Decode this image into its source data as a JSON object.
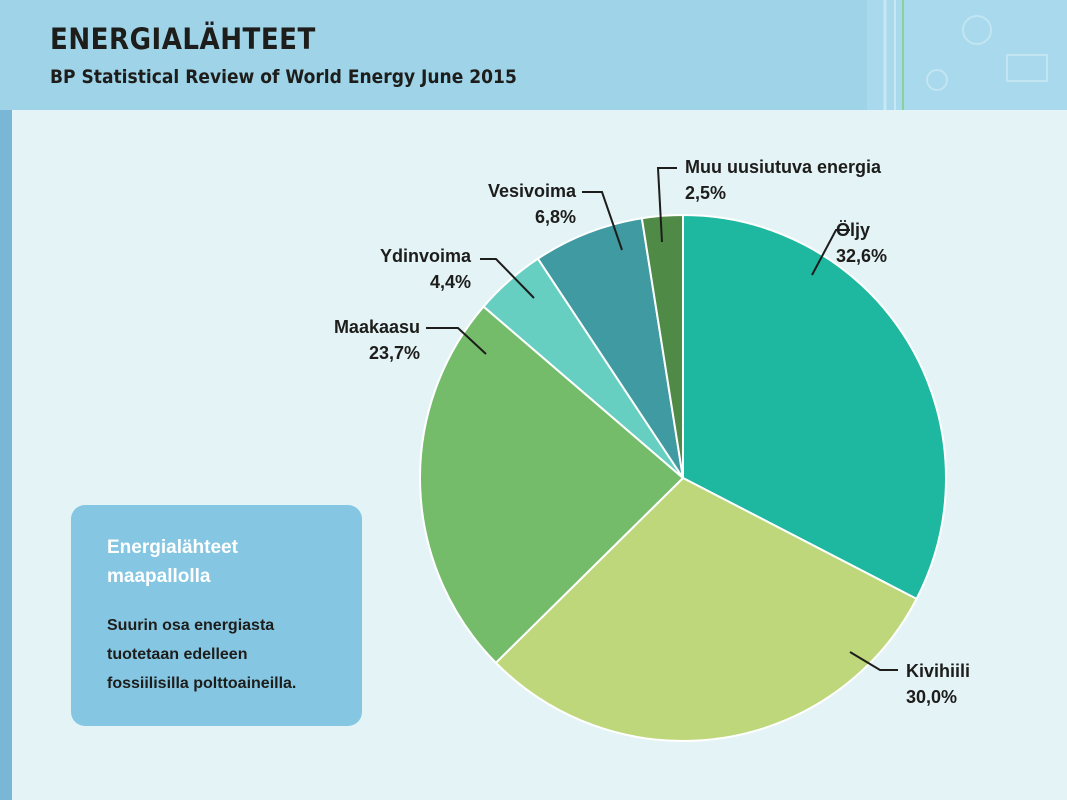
{
  "header": {
    "title": "ENERGIALÄHTEET",
    "subtitle": "BP Statistical Review of World Energy June 2015"
  },
  "info_box": {
    "title_line1": "Energialähteet",
    "title_line2": "maapallolla",
    "text_line1": "Suurin osa energiasta",
    "text_line2": "tuotetaan edelleen",
    "text_line3": "fossiilisilla polttoaineilla."
  },
  "colors": {
    "header": "#9fd3e8",
    "background": "#e4f3f6",
    "info_box": "#85c6e2"
  },
  "chart_data": {
    "type": "pie",
    "title": "",
    "slices": [
      {
        "label": "Öljy",
        "value": 32.6,
        "value_label": "32,6%",
        "color": "#1db89f"
      },
      {
        "label": "Kivihiili",
        "value": 30.0,
        "value_label": "30,0%",
        "color": "#bdd77a"
      },
      {
        "label": "Maakaasu",
        "value": 23.7,
        "value_label": "23,7%",
        "color": "#74bc6a"
      },
      {
        "label": "Ydinvoima",
        "value": 4.4,
        "value_label": "4,4%",
        "color": "#66cfc1"
      },
      {
        "label": "Vesivoima",
        "value": 6.8,
        "value_label": "6,8%",
        "color": "#409aa1"
      },
      {
        "label": "Muu uusiutuva energia",
        "value": 2.5,
        "value_label": "2,5%",
        "color": "#4f8a47"
      }
    ]
  }
}
